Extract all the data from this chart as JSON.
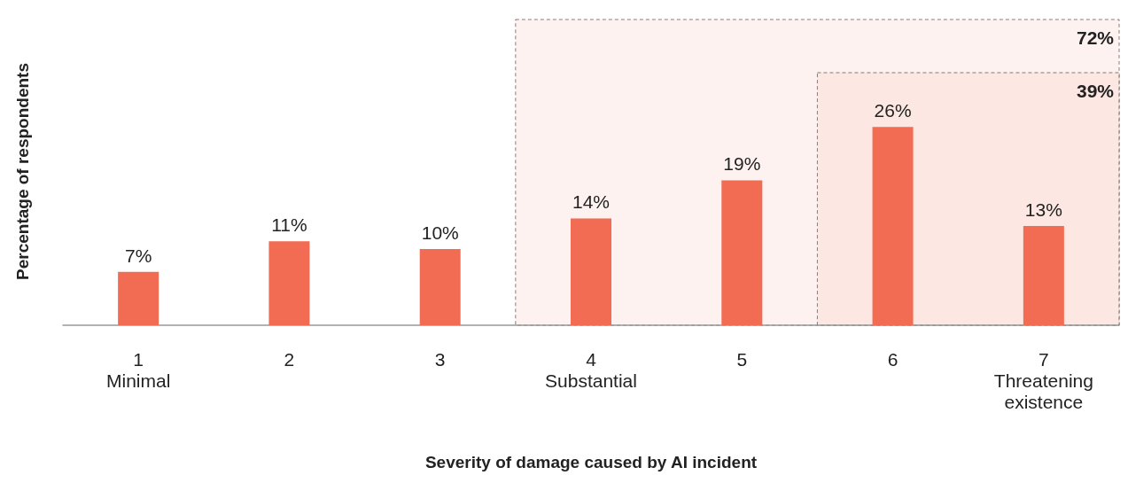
{
  "chart_data": {
    "type": "bar",
    "xlabel": "Severity of damage caused by AI incident",
    "ylabel": "Percentage of respondents",
    "categories": [
      "1\nMinimal",
      "2",
      "3",
      "4\nSubstantial",
      "5",
      "6",
      "7\nThreatening\nexistence"
    ],
    "values": [
      7,
      11,
      10,
      14,
      19,
      26,
      13
    ],
    "value_labels": [
      "7%",
      "11%",
      "10%",
      "14%",
      "19%",
      "26%",
      "13%"
    ],
    "color": "#f26b53",
    "bands": [
      {
        "axis": "x",
        "from": "4\nSubstantial",
        "to": "7\nThreatening\nexistence",
        "label": "72%",
        "color": "#fdeeeb"
      },
      {
        "axis": "x",
        "from": "6",
        "to": "7\nThreatening\nexistence",
        "label": "39%",
        "color": "#fce3de"
      }
    ],
    "tick_labels": "x"
  }
}
